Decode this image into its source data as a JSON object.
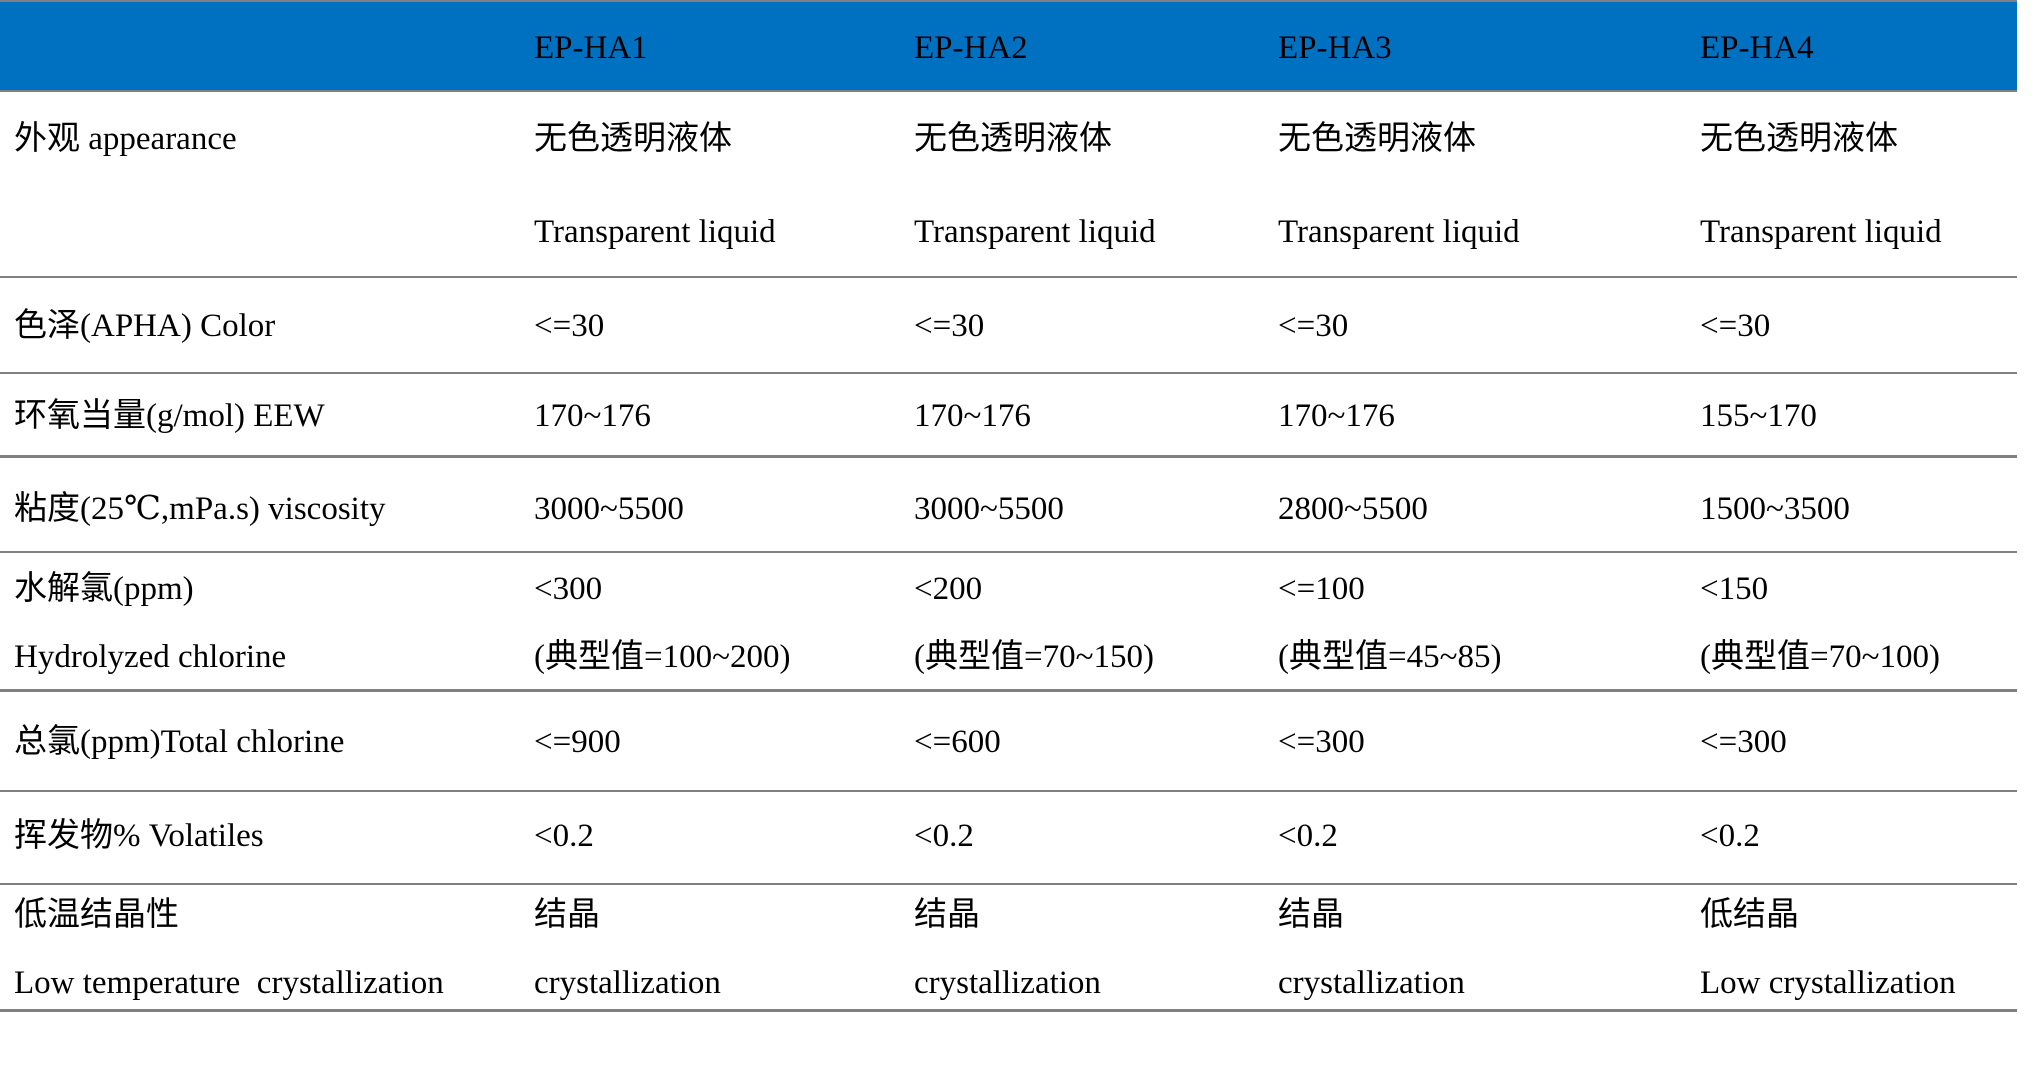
{
  "colors": {
    "header_bg": "#0070C0",
    "border": "#808080",
    "text": "#000000"
  },
  "header": {
    "row_label": "",
    "cols": [
      "EP-HA1",
      "EP-HA2",
      "EP-HA3",
      "EP-HA4"
    ]
  },
  "rows": [
    {
      "label": [
        "外观 appearance"
      ],
      "values": [
        [
          "无色透明液体",
          "Transparent liquid"
        ],
        [
          "无色透明液体",
          "Transparent liquid"
        ],
        [
          "无色透明液体",
          "Transparent liquid"
        ],
        [
          "无色透明液体",
          "Transparent liquid"
        ]
      ]
    },
    {
      "label": [
        "色泽(APHA) Color"
      ],
      "values": [
        [
          "<=30"
        ],
        [
          "<=30"
        ],
        [
          "<=30"
        ],
        [
          "<=30"
        ]
      ]
    },
    {
      "label": [
        "环氧当量(g/mol) EEW"
      ],
      "values": [
        [
          "170~176"
        ],
        [
          "170~176"
        ],
        [
          "170~176"
        ],
        [
          "155~170"
        ]
      ]
    },
    {
      "label": [
        "粘度(25℃,mPa.s) viscosity"
      ],
      "values": [
        [
          "3000~5500"
        ],
        [
          "3000~5500"
        ],
        [
          "2800~5500"
        ],
        [
          "1500~3500"
        ]
      ]
    },
    {
      "label": [
        "水解氯(ppm)",
        "Hydrolyzed chlorine"
      ],
      "values": [
        [
          "<300",
          "(典型值=100~200)"
        ],
        [
          "<200",
          "(典型值=70~150)"
        ],
        [
          "<=100",
          "(典型值=45~85)"
        ],
        [
          "<150",
          "(典型值=70~100)"
        ]
      ]
    },
    {
      "label": [
        "总氯(ppm)Total chlorine"
      ],
      "values": [
        [
          "<=900"
        ],
        [
          "<=600"
        ],
        [
          "<=300"
        ],
        [
          "<=300"
        ]
      ]
    },
    {
      "label": [
        "挥发物% Volatiles"
      ],
      "values": [
        [
          "<0.2"
        ],
        [
          "<0.2"
        ],
        [
          "<0.2"
        ],
        [
          "<0.2"
        ]
      ]
    },
    {
      "label": [
        "低温结晶性",
        "Low temperature  crystallization"
      ],
      "values": [
        [
          "结晶",
          "crystallization"
        ],
        [
          "结晶",
          "crystallization"
        ],
        [
          "结晶",
          "crystallization"
        ],
        [
          "低结晶",
          "Low crystallization"
        ]
      ]
    }
  ]
}
